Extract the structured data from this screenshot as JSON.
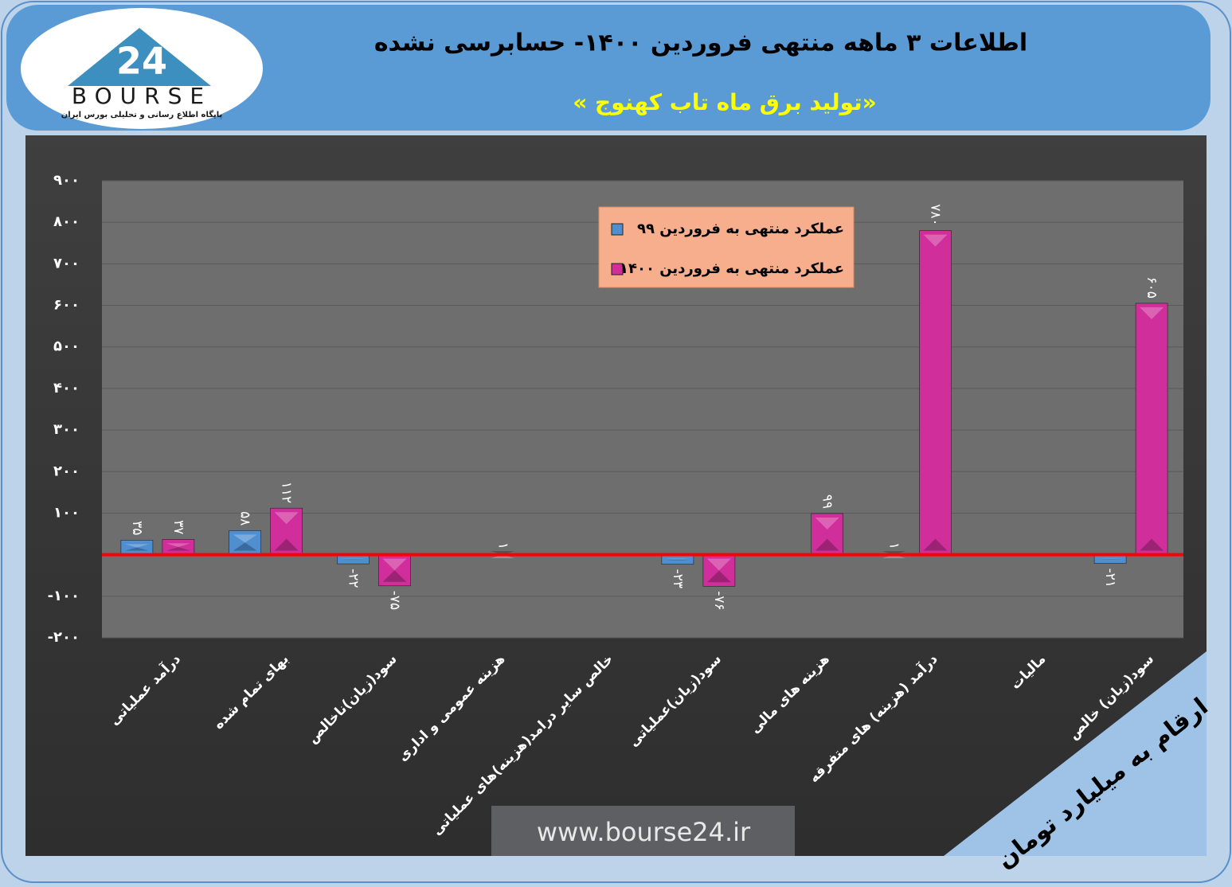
{
  "logo": {
    "number": "24",
    "brand": "BOURSE",
    "tagline": "پایگاه اطلاع رسانی و تحلیلی بورس ایران"
  },
  "chart_data": {
    "type": "bar",
    "title": "اطلاعات ۳ ماهه منتهی فروردین ۱۴۰۰- حسابرسی نشده",
    "subtitle": "«تولید برق ماه تاب کهنوج »",
    "unit_note": "ارقام به میلیارد تومان",
    "source": "www.bourse24.ir",
    "categories": [
      "درآمد عملیاتی",
      "بهای تمام شده",
      "سود(زیان)ناخالص",
      "هزینه عمومی و اداری",
      "خالص سایر درامد(هزینه)های عملیاتی",
      "سود(زیان)عملیاتی",
      "هزینه های مالی",
      "درآمد (هزینه) های متفرقه",
      "مالیات",
      "سود(زیان) خالص"
    ],
    "series": [
      {
        "name": "عملکرد منتهی به فروردین ۹۹",
        "color": "#4f8fd0",
        "values": [
          35,
          58,
          -22,
          null,
          null,
          -23,
          null,
          1,
          null,
          -21
        ],
        "value_labels": [
          "۳۵",
          "۵۸",
          "-۲۲",
          null,
          null,
          "-۲۳",
          null,
          "۱",
          null,
          "-۲۱"
        ]
      },
      {
        "name": "عملکرد منتهی به فروردین ۱۴۰۰",
        "color": "#d02f9b",
        "values": [
          37,
          112,
          -75,
          1,
          null,
          -76,
          99,
          780,
          null,
          605
        ],
        "value_labels": [
          "۳۷",
          "۱۱۲",
          "-۷۵",
          "۱",
          null,
          "-۷۶",
          "۹۹",
          "۷۸۰",
          null,
          "۶۰۵"
        ]
      }
    ],
    "ylim": [
      -200,
      900
    ],
    "yticks": [
      {
        "value": 900,
        "label": "۹۰۰"
      },
      {
        "value": 800,
        "label": "۸۰۰"
      },
      {
        "value": 700,
        "label": "۷۰۰"
      },
      {
        "value": 600,
        "label": "۶۰۰"
      },
      {
        "value": 500,
        "label": "۵۰۰"
      },
      {
        "value": 400,
        "label": "۴۰۰"
      },
      {
        "value": 300,
        "label": "۳۰۰"
      },
      {
        "value": 200,
        "label": "۲۰۰"
      },
      {
        "value": 100,
        "label": "۱۰۰"
      },
      {
        "value": -100,
        "label": "-۱۰۰"
      },
      {
        "value": -200,
        "label": "-۲۰۰"
      }
    ],
    "grid": true
  }
}
